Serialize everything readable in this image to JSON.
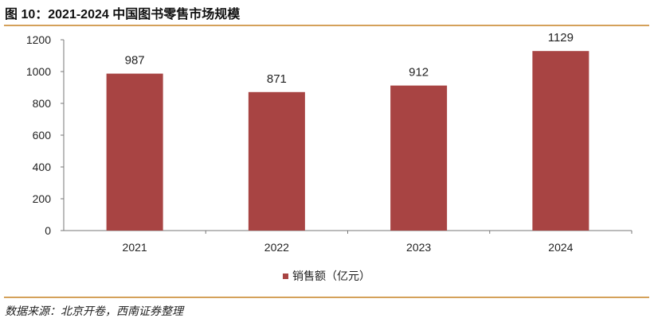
{
  "title": "图 10：2021-2024 中国图书零售市场规模",
  "source": "数据来源：北京开卷，西南证券整理",
  "colors": {
    "bar": "#A84443",
    "rule": "#D4A15A"
  },
  "chart_data": {
    "type": "bar",
    "categories": [
      "2021",
      "2022",
      "2023",
      "2024"
    ],
    "series": [
      {
        "name": "销售额（亿元）",
        "values": [
          987,
          871,
          912,
          1129
        ]
      }
    ],
    "ylim": [
      0,
      1200
    ],
    "yticks": [
      0,
      200,
      400,
      600,
      800,
      1000,
      1200
    ],
    "grid": false,
    "legend": "bottom"
  }
}
